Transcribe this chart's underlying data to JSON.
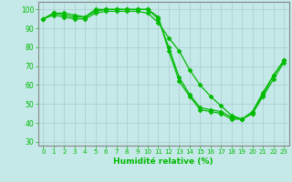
{
  "xlabel": "Humidité relative (%)",
  "background_color": "#c5e8e8",
  "grid_color": "#aacccc",
  "line_color": "#00bb00",
  "marker": "D",
  "marker_size": 2.5,
  "xlim": [
    -0.5,
    23.5
  ],
  "ylim": [
    28,
    104
  ],
  "yticks": [
    30,
    40,
    50,
    60,
    70,
    80,
    90,
    100
  ],
  "xticks": [
    0,
    1,
    2,
    3,
    4,
    5,
    6,
    7,
    8,
    9,
    10,
    11,
    12,
    13,
    14,
    15,
    16,
    17,
    18,
    19,
    20,
    21,
    22,
    23
  ],
  "series": [
    [
      95,
      98,
      98,
      97,
      96,
      100,
      100,
      100,
      100,
      100,
      100,
      96,
      78,
      62,
      54,
      47,
      46,
      45,
      42,
      42,
      45,
      55,
      65,
      73
    ],
    [
      95,
      98,
      97,
      96,
      96,
      99,
      100,
      100,
      100,
      100,
      100,
      95,
      80,
      64,
      55,
      48,
      47,
      46,
      43,
      42,
      46,
      56,
      65,
      73
    ],
    [
      95,
      97,
      96,
      95,
      95,
      98,
      99,
      99,
      99,
      99,
      98,
      93,
      85,
      78,
      68,
      60,
      54,
      49,
      44,
      42,
      45,
      54,
      63,
      72
    ]
  ]
}
